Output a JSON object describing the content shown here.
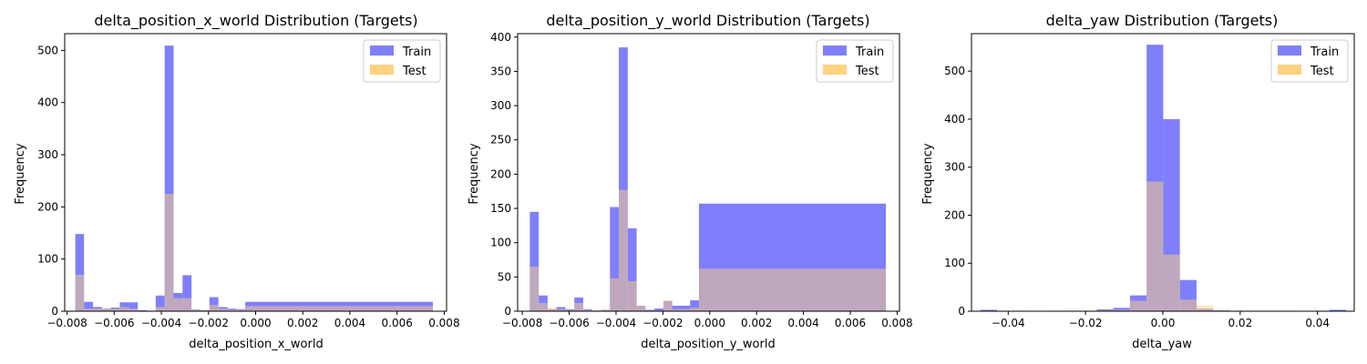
{
  "colors": {
    "train": "#7f7ffc",
    "test": "#ffd27f",
    "overlap": "#bf8f7e",
    "axis": "#000000",
    "legend_border": "#cccccc"
  },
  "chart_data": [
    {
      "type": "histogram",
      "title": "delta_position_x_world Distribution (Targets)",
      "xlabel": "delta_position_x_world",
      "ylabel": "Frequency",
      "xlim": [
        -0.0081,
        0.0081
      ],
      "ylim": [
        0,
        532
      ],
      "xticks": [
        -0.008,
        -0.006,
        -0.004,
        -0.002,
        0.0,
        0.002,
        0.004,
        0.006,
        0.008
      ],
      "xtick_labels": [
        "−0.008",
        "−0.006",
        "−0.004",
        "−0.002",
        "0.000",
        "0.002",
        "0.004",
        "0.006",
        "0.008"
      ],
      "yticks": [
        0,
        100,
        200,
        300,
        400,
        500
      ],
      "ytick_labels": [
        "0",
        "100",
        "200",
        "300",
        "400",
        "500"
      ],
      "legend_position": "upper right",
      "grid": false,
      "series": [
        {
          "name": "Train",
          "bins": [
            [
              -0.00765,
              -0.00728,
              148
            ],
            [
              -0.00728,
              -0.0069,
              18
            ],
            [
              -0.0069,
              -0.00652,
              8
            ],
            [
              -0.00652,
              -0.00614,
              5
            ],
            [
              -0.00614,
              -0.00576,
              7
            ],
            [
              -0.00576,
              -0.00538,
              17
            ],
            [
              -0.00538,
              -0.005,
              17
            ],
            [
              -0.005,
              -0.00462,
              2
            ],
            [
              -0.00462,
              -0.00424,
              1
            ],
            [
              -0.00424,
              -0.00386,
              30
            ],
            [
              -0.00386,
              -0.00348,
              509
            ],
            [
              -0.00348,
              -0.0031,
              35
            ],
            [
              -0.0031,
              -0.00272,
              69
            ],
            [
              -0.00272,
              -0.00234,
              3
            ],
            [
              -0.00234,
              -0.00196,
              2
            ],
            [
              -0.00196,
              -0.00158,
              27
            ],
            [
              -0.00158,
              -0.0012,
              8
            ],
            [
              -0.0012,
              -0.00082,
              5
            ],
            [
              -0.00082,
              -0.00044,
              4
            ],
            [
              -0.00044,
              0.00752,
              18
            ]
          ]
        },
        {
          "name": "Test",
          "bins": [
            [
              -0.00765,
              -0.00728,
              70
            ],
            [
              -0.00728,
              -0.0069,
              5
            ],
            [
              -0.0069,
              -0.00652,
              5
            ],
            [
              -0.00652,
              -0.00614,
              5
            ],
            [
              -0.00614,
              -0.00576,
              5
            ],
            [
              -0.00576,
              -0.00538,
              8
            ],
            [
              -0.00538,
              -0.005,
              5
            ],
            [
              -0.005,
              -0.00462,
              1
            ],
            [
              -0.00462,
              -0.00424,
              1
            ],
            [
              -0.00424,
              -0.00386,
              8
            ],
            [
              -0.00386,
              -0.00348,
              225
            ],
            [
              -0.00348,
              -0.0031,
              25
            ],
            [
              -0.0031,
              -0.00272,
              25
            ],
            [
              -0.00272,
              -0.00234,
              2
            ],
            [
              -0.00234,
              -0.00196,
              2
            ],
            [
              -0.00196,
              -0.00158,
              12
            ],
            [
              -0.00158,
              -0.0012,
              5
            ],
            [
              -0.0012,
              -0.00082,
              3
            ],
            [
              -0.00082,
              -0.00044,
              3
            ],
            [
              -0.00044,
              0.00752,
              10
            ]
          ]
        }
      ]
    },
    {
      "type": "histogram",
      "title": "delta_position_y_world Distribution (Targets)",
      "xlabel": "delta_position_y_world",
      "ylabel": "Frequency",
      "xlim": [
        -0.0082,
        0.0081
      ],
      "ylim": [
        0,
        405
      ],
      "xticks": [
        -0.008,
        -0.006,
        -0.004,
        -0.002,
        0.0,
        0.002,
        0.004,
        0.006,
        0.008
      ],
      "xtick_labels": [
        "−0.008",
        "−0.006",
        "−0.004",
        "−0.002",
        "0.000",
        "0.002",
        "0.004",
        "0.006",
        "0.008"
      ],
      "yticks": [
        0,
        50,
        100,
        150,
        200,
        250,
        300,
        350,
        400
      ],
      "ytick_labels": [
        "0",
        "50",
        "100",
        "150",
        "200",
        "250",
        "300",
        "350",
        "400"
      ],
      "legend_position": "upper right",
      "grid": false,
      "series": [
        {
          "name": "Train",
          "bins": [
            [
              -0.00768,
              -0.0073,
              145
            ],
            [
              -0.0073,
              -0.00692,
              23
            ],
            [
              -0.00692,
              -0.00654,
              3
            ],
            [
              -0.00654,
              -0.00616,
              6
            ],
            [
              -0.00616,
              -0.00578,
              3
            ],
            [
              -0.00578,
              -0.0054,
              20
            ],
            [
              -0.0054,
              -0.00502,
              3
            ],
            [
              -0.00502,
              -0.00464,
              1
            ],
            [
              -0.00464,
              -0.00426,
              2
            ],
            [
              -0.00426,
              -0.00388,
              152
            ],
            [
              -0.00388,
              -0.0035,
              385
            ],
            [
              -0.0035,
              -0.00312,
              121
            ],
            [
              -0.00312,
              -0.00274,
              8
            ],
            [
              -0.00274,
              -0.00236,
              2
            ],
            [
              -0.00236,
              -0.00198,
              4
            ],
            [
              -0.00198,
              -0.0016,
              15
            ],
            [
              -0.0016,
              -0.00122,
              8
            ],
            [
              -0.00122,
              -0.00084,
              8
            ],
            [
              -0.00084,
              -0.00046,
              16
            ],
            [
              -0.00046,
              0.00752,
              157
            ]
          ]
        },
        {
          "name": "Test",
          "bins": [
            [
              -0.00768,
              -0.0073,
              65
            ],
            [
              -0.0073,
              -0.00692,
              12
            ],
            [
              -0.00692,
              -0.00654,
              5
            ],
            [
              -0.00654,
              -0.00616,
              3
            ],
            [
              -0.00616,
              -0.00578,
              2
            ],
            [
              -0.00578,
              -0.0054,
              12
            ],
            [
              -0.0054,
              -0.00502,
              2
            ],
            [
              -0.00502,
              -0.00464,
              1
            ],
            [
              -0.00464,
              -0.00426,
              3
            ],
            [
              -0.00426,
              -0.00388,
              48
            ],
            [
              -0.00388,
              -0.0035,
              177
            ],
            [
              -0.0035,
              -0.00312,
              44
            ],
            [
              -0.00312,
              -0.00274,
              8
            ],
            [
              -0.00274,
              -0.00236,
              1
            ],
            [
              -0.00236,
              -0.00198,
              1
            ],
            [
              -0.00198,
              -0.0016,
              16
            ],
            [
              -0.0016,
              -0.00122,
              3
            ],
            [
              -0.00122,
              -0.00084,
              3
            ],
            [
              -0.00084,
              -0.00046,
              5
            ],
            [
              -0.00046,
              0.00752,
              62
            ]
          ]
        }
      ]
    },
    {
      "type": "histogram",
      "title": "delta_yaw Distribution (Targets)",
      "xlabel": "delta_yaw",
      "ylabel": "Frequency",
      "xlim": [
        -0.0495,
        0.0495
      ],
      "ylim": [
        0,
        578
      ],
      "xticks": [
        -0.04,
        -0.02,
        0.0,
        0.02,
        0.04
      ],
      "xtick_labels": [
        "−0.04",
        "−0.02",
        "0.00",
        "0.02",
        "0.04"
      ],
      "yticks": [
        0,
        100,
        200,
        300,
        400,
        500
      ],
      "ytick_labels": [
        "0",
        "100",
        "200",
        "300",
        "400",
        "500"
      ],
      "legend_position": "upper right",
      "grid": false,
      "series": [
        {
          "name": "Train",
          "bins": [
            [
              -0.0472,
              -0.0429,
              3
            ],
            [
              -0.0429,
              -0.0386,
              0
            ],
            [
              -0.0386,
              -0.0343,
              1
            ],
            [
              -0.0343,
              -0.03,
              0
            ],
            [
              -0.03,
              -0.0257,
              1
            ],
            [
              -0.0257,
              -0.0214,
              1
            ],
            [
              -0.0214,
              -0.0171,
              1
            ],
            [
              -0.0171,
              -0.0128,
              4
            ],
            [
              -0.0128,
              -0.0085,
              7
            ],
            [
              -0.0085,
              -0.0042,
              33
            ],
            [
              -0.0042,
              0.0001,
              555
            ],
            [
              0.0001,
              0.0044,
              400
            ],
            [
              0.0044,
              0.0087,
              65
            ],
            [
              0.0087,
              0.013,
              5
            ],
            [
              0.013,
              0.0173,
              2
            ],
            [
              0.0173,
              0.0216,
              1
            ],
            [
              0.0216,
              0.0259,
              1
            ],
            [
              0.0259,
              0.0302,
              1
            ],
            [
              0.0302,
              0.0345,
              1
            ],
            [
              0.0345,
              0.0388,
              0
            ],
            [
              0.0388,
              0.0431,
              1
            ],
            [
              0.0431,
              0.0474,
              3
            ]
          ]
        },
        {
          "name": "Test",
          "bins": [
            [
              -0.0472,
              -0.0429,
              0
            ],
            [
              -0.0429,
              -0.0386,
              0
            ],
            [
              -0.0386,
              -0.0343,
              0
            ],
            [
              -0.0343,
              -0.03,
              0
            ],
            [
              -0.03,
              -0.0257,
              0
            ],
            [
              -0.0257,
              -0.0214,
              1
            ],
            [
              -0.0214,
              -0.0171,
              1
            ],
            [
              -0.0171,
              -0.0128,
              2
            ],
            [
              -0.0128,
              -0.0085,
              3
            ],
            [
              -0.0085,
              -0.0042,
              22
            ],
            [
              -0.0042,
              0.0001,
              270
            ],
            [
              0.0001,
              0.0044,
              118
            ],
            [
              0.0044,
              0.0087,
              24
            ],
            [
              0.0087,
              0.013,
              12
            ],
            [
              0.013,
              0.0173,
              2
            ],
            [
              0.0173,
              0.0216,
              1
            ],
            [
              0.0216,
              0.0259,
              0
            ],
            [
              0.0259,
              0.0302,
              0
            ],
            [
              0.0302,
              0.0345,
              0
            ],
            [
              0.0345,
              0.0388,
              0
            ],
            [
              0.0388,
              0.0431,
              0
            ],
            [
              0.0431,
              0.0474,
              0
            ]
          ]
        }
      ]
    }
  ]
}
